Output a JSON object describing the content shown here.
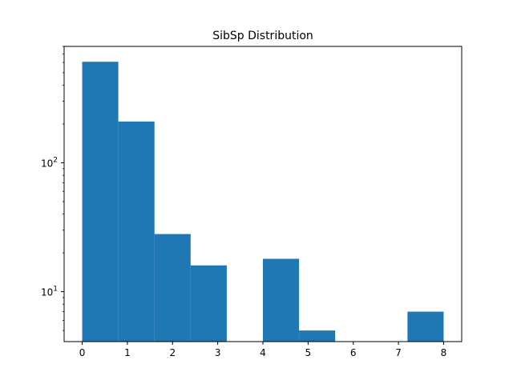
{
  "chart_data": {
    "type": "bar",
    "title": "SibSp Distribution",
    "xlabel": "",
    "ylabel": "",
    "yscale": "log",
    "xlim": [
      -0.4,
      8.4
    ],
    "ylim": [
      4.1,
      800
    ],
    "bar_color": "#1f77b4",
    "bins": [
      {
        "start": 0.0,
        "end": 0.8,
        "count": 608
      },
      {
        "start": 0.8,
        "end": 1.6,
        "count": 209
      },
      {
        "start": 1.6,
        "end": 2.4,
        "count": 28
      },
      {
        "start": 2.4,
        "end": 3.2,
        "count": 16
      },
      {
        "start": 3.2,
        "end": 4.0,
        "count": 0
      },
      {
        "start": 4.0,
        "end": 4.8,
        "count": 18
      },
      {
        "start": 4.8,
        "end": 5.6,
        "count": 5
      },
      {
        "start": 5.6,
        "end": 6.4,
        "count": 0
      },
      {
        "start": 6.4,
        "end": 7.2,
        "count": 0
      },
      {
        "start": 7.2,
        "end": 8.0,
        "count": 7
      }
    ],
    "x_ticks": [
      0,
      1,
      2,
      3,
      4,
      5,
      6,
      7,
      8
    ],
    "x_tick_labels": [
      "0",
      "1",
      "2",
      "3",
      "4",
      "5",
      "6",
      "7",
      "8"
    ],
    "y_major_ticks": [
      {
        "value": 10,
        "base": "10",
        "exp": "1"
      },
      {
        "value": 100,
        "base": "10",
        "exp": "2"
      }
    ],
    "grid": false,
    "legend": "none"
  }
}
